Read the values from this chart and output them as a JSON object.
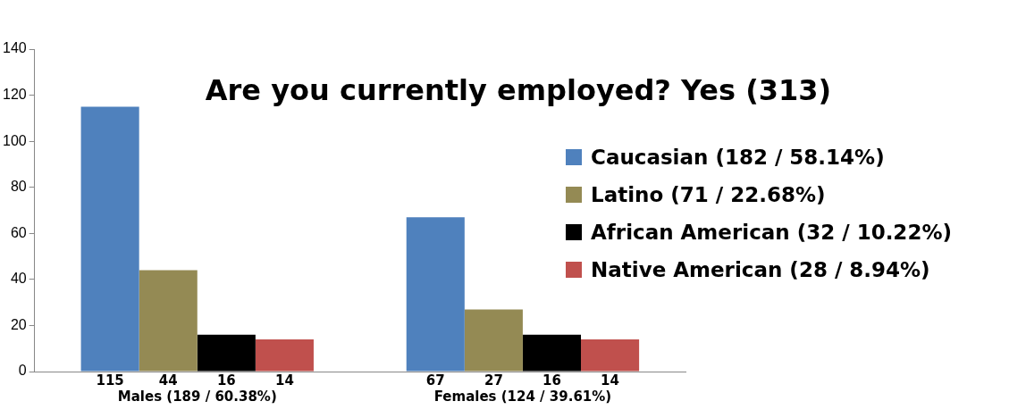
{
  "chart_data": {
    "type": "bar",
    "title": "Are you currently employed? Yes (313)",
    "categories": [
      "Males (189 / 60.38%)",
      "Females (124 / 39.61%)"
    ],
    "series": [
      {
        "name": "Caucasian (182 / 58.14%)",
        "color": "#4f81bd",
        "values": [
          115,
          67
        ]
      },
      {
        "name": "Latino (71 / 22.68%)",
        "color": "#948a54",
        "values": [
          44,
          27
        ]
      },
      {
        "name": "African American (32 / 10.22%)",
        "color": "#000000",
        "values": [
          16,
          16
        ]
      },
      {
        "name": "Native American (28 / 8.94%)",
        "color": "#c0504d",
        "values": [
          14,
          14
        ]
      }
    ],
    "ylim": [
      0,
      140
    ],
    "yticks": [
      0,
      20,
      40,
      60,
      80,
      100,
      120,
      140
    ],
    "grid": false,
    "legend": "right",
    "data_labels": true
  }
}
